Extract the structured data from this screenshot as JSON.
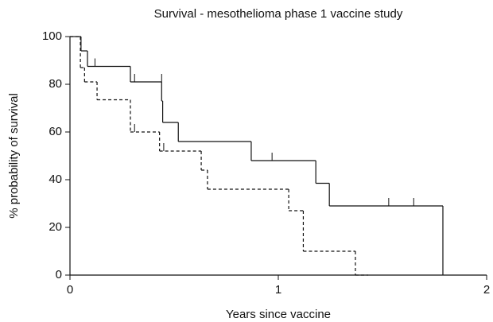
{
  "chart_data": {
    "type": "step",
    "title": "Survival - mesothelioma phase 1 vaccine study",
    "x_label": "Years since vaccine",
    "y_label": "% probability of survival",
    "xlim": [
      0,
      2
    ],
    "xticks": [
      0,
      1,
      2
    ],
    "ylim": [
      0,
      100
    ],
    "yticks": [
      0,
      20,
      40,
      60,
      80,
      100
    ],
    "series": [
      {
        "color": "#111111",
        "dash": "solid",
        "x": [
          0,
          0.053,
          0.084,
          0.29,
          0.44,
          0.445,
          0.52,
          0.87,
          1.18,
          1.245,
          1.79
        ],
        "values": [
          100,
          94,
          87.5,
          81,
          73,
          64,
          56,
          48,
          38.5,
          29,
          0
        ],
        "censor_x": [
          0.12,
          0.31,
          0.44,
          0.97,
          1.53,
          1.65
        ],
        "censor_y": [
          87.5,
          81,
          81,
          48,
          29,
          29
        ]
      },
      {
        "color": "#111111",
        "dash": "dashed",
        "x": [
          0,
          0.05,
          0.07,
          0.13,
          0.29,
          0.43,
          0.63,
          0.66,
          1.05,
          1.12,
          1.37,
          1.43
        ],
        "values": [
          100,
          87,
          81,
          73.5,
          60,
          52,
          44,
          36,
          27,
          10,
          0,
          0
        ],
        "censor_x": [
          0.31,
          0.45
        ],
        "censor_y": [
          60,
          52
        ]
      }
    ]
  }
}
